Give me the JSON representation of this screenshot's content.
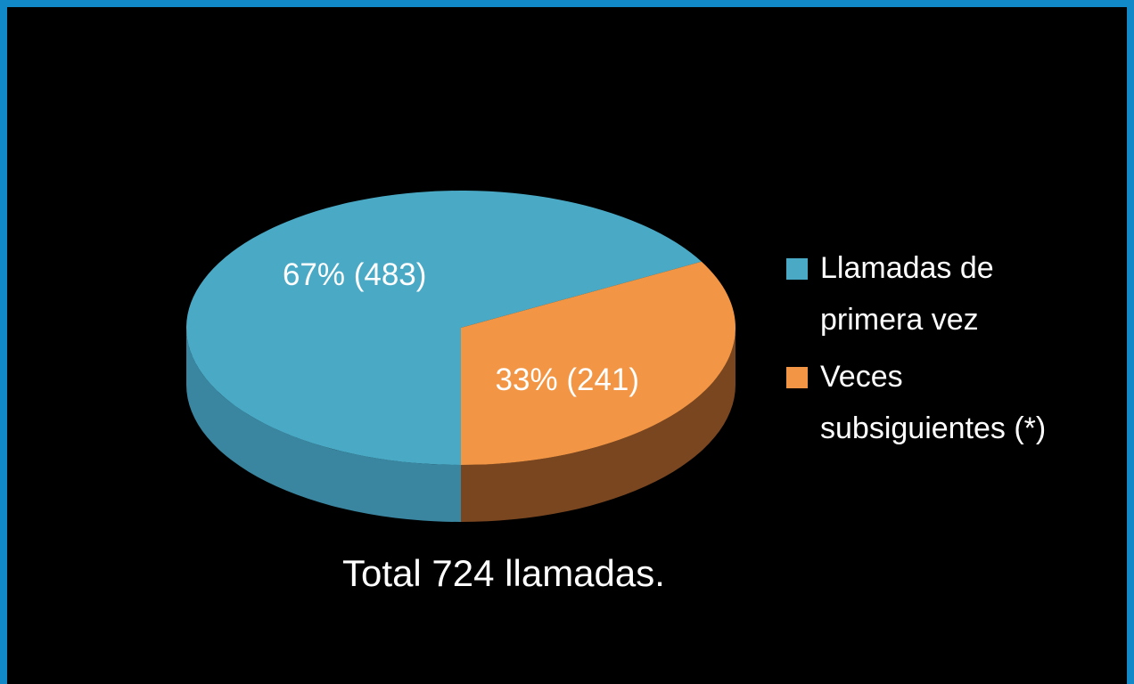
{
  "chart_data": {
    "type": "pie",
    "categories": [
      "Llamadas de primera vez",
      "Veces subsiguientes (*)"
    ],
    "values": [
      67,
      33
    ],
    "value_labels": [
      "67% (483)",
      "33% (241)"
    ],
    "colors": [
      "#4aaac6",
      "#f29645"
    ],
    "side_colors": [
      "#3a86a0",
      "#7a4620"
    ],
    "annotation": "Total 724 llamadas.",
    "legend": "right"
  }
}
